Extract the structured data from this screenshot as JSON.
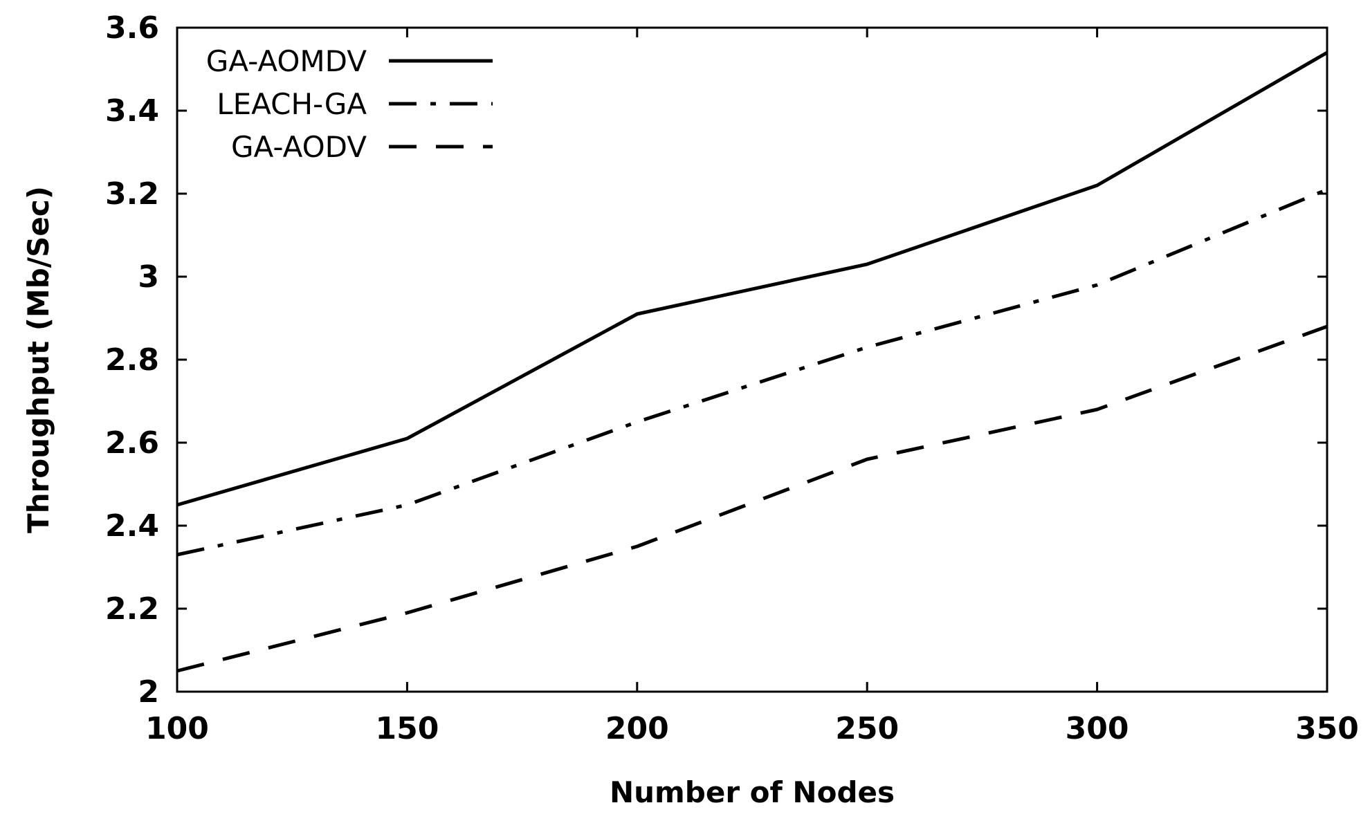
{
  "chart_data": {
    "type": "line",
    "title": "",
    "xlabel": "Number of Nodes",
    "ylabel": "Throughput (Mb/Sec)",
    "x": [
      100,
      150,
      200,
      250,
      300,
      350
    ],
    "x_ticks": [
      "100",
      "150",
      "200",
      "250",
      "300",
      "350"
    ],
    "y_ticks": [
      "2",
      "2.2",
      "2.4",
      "2.6",
      "2.8",
      "3",
      "3.2",
      "3.4",
      "3.6"
    ],
    "y_tick_values": [
      2,
      2.2,
      2.4,
      2.6,
      2.8,
      3,
      3.2,
      3.4,
      3.6
    ],
    "xlim": [
      100,
      350
    ],
    "ylim": [
      2,
      3.6
    ],
    "grid": false,
    "legend_position": "top-left",
    "series": [
      {
        "name": "GA-AOMDV",
        "style": "solid",
        "color": "#000000",
        "values": [
          2.45,
          2.61,
          2.91,
          3.03,
          3.22,
          3.54
        ]
      },
      {
        "name": "LEACH-GA",
        "style": "dash-dot",
        "color": "#000000",
        "values": [
          2.33,
          2.45,
          2.65,
          2.83,
          2.98,
          3.21
        ]
      },
      {
        "name": "GA-AODV",
        "style": "dashed",
        "color": "#000000",
        "values": [
          2.05,
          2.19,
          2.35,
          2.56,
          2.68,
          2.88
        ]
      }
    ]
  }
}
